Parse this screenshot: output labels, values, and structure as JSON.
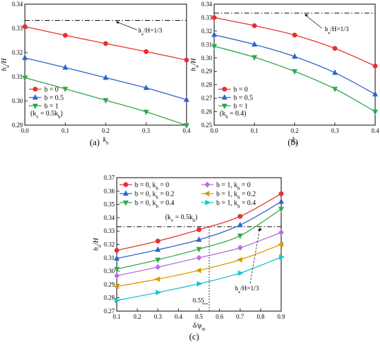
{
  "chart_data": [
    {
      "id": "a",
      "type": "line",
      "panel_label": "(a)",
      "xlabel": "k_h",
      "ylabel": "h_a/H",
      "xlim": [
        0,
        0.4
      ],
      "ylim": [
        0.29,
        0.34
      ],
      "x_ticks": [
        "0.0",
        "0.1",
        "0.2",
        "0.3",
        "0.4"
      ],
      "y_ticks": [
        "0.29",
        "0.30",
        "0.31",
        "0.32",
        "0.33",
        "0.34"
      ],
      "reference_line": {
        "y": 0.3333,
        "label": "h_a/H=1/3"
      },
      "legend_note": "(k_v = 0.5k_h)",
      "x": [
        0,
        0.1,
        0.2,
        0.3,
        0.4
      ],
      "series": [
        {
          "name": "b = 0",
          "color": "#e8302e",
          "marker": "circle",
          "values": [
            0.3307,
            0.3271,
            0.3237,
            0.3204,
            0.3169
          ]
        },
        {
          "name": "b = 0.5",
          "color": "#2e64c8",
          "marker": "triangle-up",
          "values": [
            0.3178,
            0.3138,
            0.3096,
            0.3054,
            0.3005
          ]
        },
        {
          "name": "b = 1",
          "color": "#30a84a",
          "marker": "triangle-down",
          "values": [
            0.3096,
            0.305,
            0.3003,
            0.2955,
            0.2899
          ]
        }
      ]
    },
    {
      "id": "b",
      "type": "line",
      "panel_label": "(b)",
      "xlabel": "k_v",
      "ylabel": "h_a/H",
      "xlim": [
        0,
        0.4
      ],
      "ylim": [
        0.25,
        0.34
      ],
      "x_ticks": [
        "0.0",
        "0.1",
        "0.2",
        "0.3",
        "0.4"
      ],
      "y_ticks": [
        "0.25",
        "0.26",
        "0.27",
        "0.28",
        "0.29",
        "0.30",
        "0.31",
        "0.32",
        "0.33",
        "0.34"
      ],
      "reference_line": {
        "y": 0.3333,
        "label": "h_a/H=1/3"
      },
      "legend_note": "(k_h = 0.4)",
      "x": [
        0,
        0.1,
        0.2,
        0.3,
        0.4
      ],
      "series": [
        {
          "name": "b = 0",
          "color": "#e8302e",
          "marker": "circle",
          "values": [
            0.33,
            0.324,
            0.317,
            0.3071,
            0.294
          ]
        },
        {
          "name": "b = 0.5",
          "color": "#2e64c8",
          "marker": "triangle-up",
          "values": [
            0.3172,
            0.31,
            0.301,
            0.289,
            0.273
          ]
        },
        {
          "name": "b = 1",
          "color": "#30a84a",
          "marker": "triangle-down",
          "values": [
            0.3087,
            0.3005,
            0.29,
            0.277,
            0.26
          ]
        }
      ]
    },
    {
      "id": "c",
      "type": "line",
      "panel_label": "(c)",
      "xlabel": "δ/φ_m",
      "ylabel": "h_a/H",
      "xlim": [
        0.1,
        0.9
      ],
      "ylim": [
        0.27,
        0.37
      ],
      "x_ticks": [
        "0.1",
        "0.2",
        "0.3",
        "0.4",
        "0.5",
        "0.6",
        "0.7",
        "0.8",
        "0.9"
      ],
      "y_ticks": [
        "0.27",
        "0.28",
        "0.29",
        "0.30",
        "0.31",
        "0.32",
        "0.33",
        "0.34",
        "0.35",
        "0.36",
        "0.37"
      ],
      "reference_line": {
        "y": 0.3333,
        "label": "h_a/H=1/3"
      },
      "vertical_marker": {
        "x": 0.55,
        "label": "0.55"
      },
      "legend_note": "(k_v = 0.5k_h)",
      "x": [
        0.1,
        0.3,
        0.5,
        0.7,
        0.9
      ],
      "series": [
        {
          "name": "b = 0, k_h = 0",
          "color": "#e8302e",
          "marker": "circle",
          "values": [
            0.3155,
            0.3225,
            0.331,
            0.341,
            0.358
          ]
        },
        {
          "name": "b = 0, k_h = 0.2",
          "color": "#2e64c8",
          "marker": "triangle-up",
          "values": [
            0.3095,
            0.316,
            0.3235,
            0.3345,
            0.352
          ]
        },
        {
          "name": "b = 0, k_h = 0.4",
          "color": "#30a84a",
          "marker": "triangle-down",
          "values": [
            0.3015,
            0.3085,
            0.3165,
            0.3265,
            0.3465
          ]
        },
        {
          "name": "b = 1, k_h = 0",
          "color": "#b46ee0",
          "marker": "diamond",
          "values": [
            0.2965,
            0.303,
            0.31,
            0.3175,
            0.329
          ]
        },
        {
          "name": "b = 1, k_h = 0.2",
          "color": "#d99a00",
          "marker": "triangle-left",
          "values": [
            0.2885,
            0.294,
            0.3005,
            0.3085,
            0.32
          ]
        },
        {
          "name": "b = 1, k_h = 0.4",
          "color": "#19c6cc",
          "marker": "triangle-right",
          "values": [
            0.278,
            0.284,
            0.2905,
            0.2985,
            0.3105
          ]
        }
      ]
    }
  ]
}
